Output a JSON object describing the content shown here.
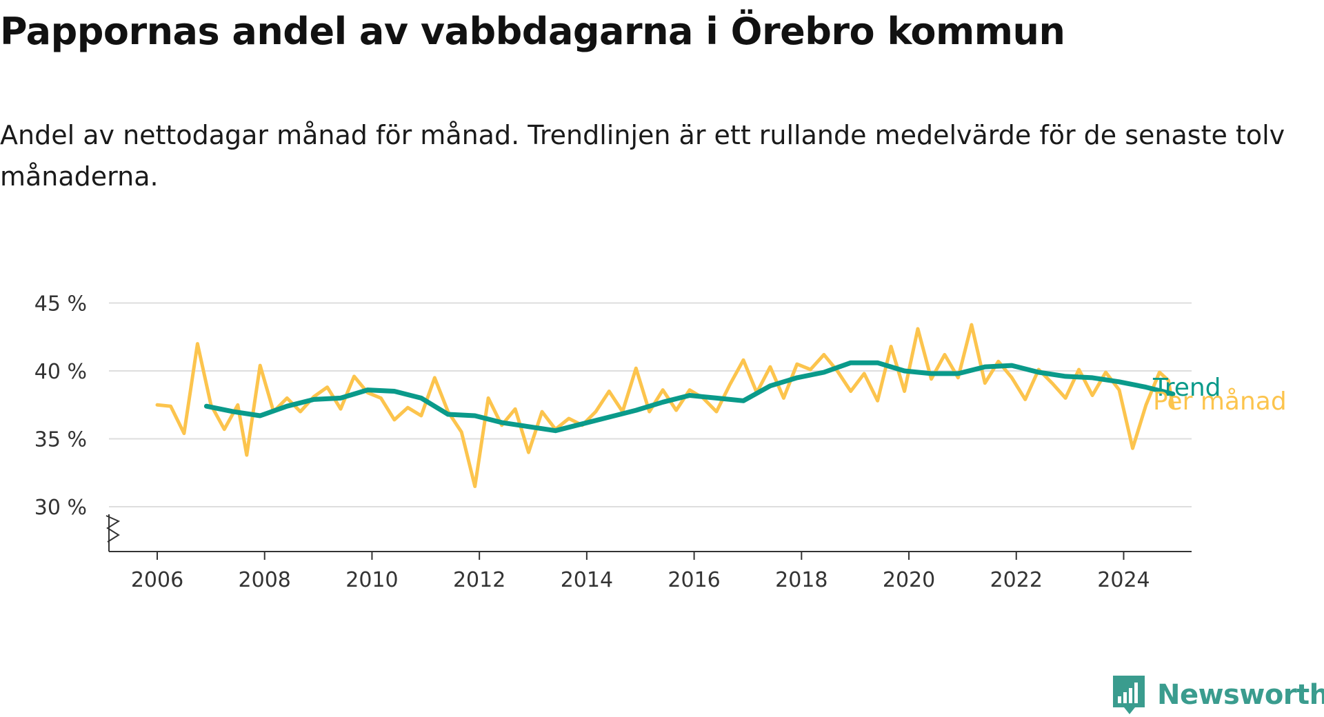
{
  "title": "Pappornas andel av vabbdagarna i Örebro kommun",
  "subtitle": "Andel av nettodagar månad för månad. Trendlinjen är ett rullande medelvärde för de senaste tolv månaderna.",
  "brand": {
    "name": "Newsworthy",
    "logo_icon": "bar-chart-speech-bubble-icon",
    "color": "#3a9c8e"
  },
  "chart_data": {
    "type": "line",
    "title": "Pappornas andel av vabbdagarna i Örebro kommun",
    "subtitle": "Andel av nettodagar månad för månad. Trendlinjen är ett rullande medelvärde för de senaste tolv månaderna.",
    "xlabel": "",
    "ylabel": "",
    "ylim": [
      27,
      45
    ],
    "xlim": [
      "2005-01",
      "2024-12"
    ],
    "y_ticks": [
      "30 %",
      "35 %",
      "40 %",
      "45 %"
    ],
    "y_tick_values": [
      30,
      35,
      40,
      45
    ],
    "x_ticks": [
      "2006",
      "2008",
      "2010",
      "2012",
      "2014",
      "2016",
      "2018",
      "2020",
      "2022",
      "2024"
    ],
    "y_axis_break": true,
    "grid": "horizontal",
    "legend": "direct labels at right end of lines",
    "series": [
      {
        "name": "Per månad",
        "color": "#fcc44d",
        "points": [
          [
            "2006-01",
            37.5
          ],
          [
            "2006-04",
            37.4
          ],
          [
            "2006-07",
            35.4
          ],
          [
            "2006-10",
            42.0
          ],
          [
            "2007-01",
            37.5
          ],
          [
            "2007-04",
            35.7
          ],
          [
            "2007-07",
            37.5
          ],
          [
            "2007-09",
            33.8
          ],
          [
            "2007-12",
            40.4
          ],
          [
            "2008-03",
            37.0
          ],
          [
            "2008-06",
            38.0
          ],
          [
            "2008-09",
            37.0
          ],
          [
            "2008-12",
            38.1
          ],
          [
            "2009-03",
            38.8
          ],
          [
            "2009-06",
            37.2
          ],
          [
            "2009-09",
            39.6
          ],
          [
            "2009-12",
            38.4
          ],
          [
            "2010-03",
            38.0
          ],
          [
            "2010-06",
            36.4
          ],
          [
            "2010-09",
            37.3
          ],
          [
            "2010-12",
            36.7
          ],
          [
            "2011-03",
            39.5
          ],
          [
            "2011-06",
            37.0
          ],
          [
            "2011-09",
            35.5
          ],
          [
            "2011-12",
            31.5
          ],
          [
            "2012-03",
            38.0
          ],
          [
            "2012-06",
            36.0
          ],
          [
            "2012-09",
            37.2
          ],
          [
            "2012-12",
            34.0
          ],
          [
            "2013-03",
            37.0
          ],
          [
            "2013-06",
            35.7
          ],
          [
            "2013-09",
            36.5
          ],
          [
            "2013-12",
            36.0
          ],
          [
            "2014-03",
            37.0
          ],
          [
            "2014-06",
            38.5
          ],
          [
            "2014-09",
            37.0
          ],
          [
            "2014-12",
            40.2
          ],
          [
            "2015-03",
            37.0
          ],
          [
            "2015-06",
            38.6
          ],
          [
            "2015-09",
            37.1
          ],
          [
            "2015-12",
            38.6
          ],
          [
            "2016-03",
            38.0
          ],
          [
            "2016-06",
            37.0
          ],
          [
            "2016-09",
            39.0
          ],
          [
            "2016-12",
            40.8
          ],
          [
            "2017-03",
            38.4
          ],
          [
            "2017-06",
            40.3
          ],
          [
            "2017-09",
            38.0
          ],
          [
            "2017-12",
            40.5
          ],
          [
            "2018-03",
            40.1
          ],
          [
            "2018-06",
            41.2
          ],
          [
            "2018-09",
            40.0
          ],
          [
            "2018-12",
            38.5
          ],
          [
            "2019-03",
            39.8
          ],
          [
            "2019-06",
            37.8
          ],
          [
            "2019-09",
            41.8
          ],
          [
            "2019-12",
            38.5
          ],
          [
            "2020-03",
            43.1
          ],
          [
            "2020-06",
            39.4
          ],
          [
            "2020-09",
            41.2
          ],
          [
            "2020-12",
            39.5
          ],
          [
            "2021-03",
            43.4
          ],
          [
            "2021-06",
            39.1
          ],
          [
            "2021-09",
            40.7
          ],
          [
            "2021-12",
            39.5
          ],
          [
            "2022-03",
            37.9
          ],
          [
            "2022-06",
            40.1
          ],
          [
            "2022-09",
            39.1
          ],
          [
            "2022-12",
            38.0
          ],
          [
            "2023-03",
            40.1
          ],
          [
            "2023-06",
            38.2
          ],
          [
            "2023-09",
            39.9
          ],
          [
            "2023-12",
            38.6
          ],
          [
            "2024-03",
            34.3
          ],
          [
            "2024-06",
            37.5
          ],
          [
            "2024-09",
            39.9
          ],
          [
            "2024-11",
            39.3
          ],
          [
            "2024-12",
            37.3
          ]
        ]
      },
      {
        "name": "Trend",
        "color": "#0a9a8a",
        "points": [
          [
            "2006-12",
            37.4
          ],
          [
            "2007-06",
            37.0
          ],
          [
            "2007-12",
            36.7
          ],
          [
            "2008-06",
            37.4
          ],
          [
            "2008-12",
            37.9
          ],
          [
            "2009-06",
            38.0
          ],
          [
            "2009-12",
            38.6
          ],
          [
            "2010-06",
            38.5
          ],
          [
            "2010-12",
            38.0
          ],
          [
            "2011-06",
            36.8
          ],
          [
            "2011-12",
            36.7
          ],
          [
            "2012-06",
            36.2
          ],
          [
            "2012-12",
            35.9
          ],
          [
            "2013-06",
            35.6
          ],
          [
            "2013-12",
            36.1
          ],
          [
            "2014-06",
            36.6
          ],
          [
            "2014-12",
            37.1
          ],
          [
            "2015-06",
            37.7
          ],
          [
            "2015-12",
            38.2
          ],
          [
            "2016-06",
            38.0
          ],
          [
            "2016-12",
            37.8
          ],
          [
            "2017-06",
            38.9
          ],
          [
            "2017-12",
            39.5
          ],
          [
            "2018-06",
            39.9
          ],
          [
            "2018-12",
            40.6
          ],
          [
            "2019-06",
            40.6
          ],
          [
            "2019-12",
            40.0
          ],
          [
            "2020-06",
            39.8
          ],
          [
            "2020-12",
            39.8
          ],
          [
            "2021-06",
            40.3
          ],
          [
            "2021-12",
            40.4
          ],
          [
            "2022-06",
            39.9
          ],
          [
            "2022-12",
            39.6
          ],
          [
            "2023-06",
            39.5
          ],
          [
            "2023-12",
            39.2
          ],
          [
            "2024-06",
            38.8
          ],
          [
            "2024-12",
            38.3
          ]
        ]
      }
    ]
  }
}
